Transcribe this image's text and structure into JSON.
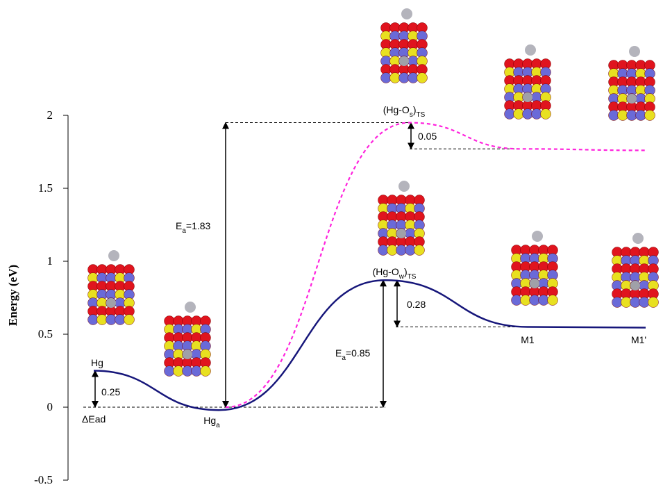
{
  "chart_data": {
    "type": "line",
    "y_label": "Energy (eV)",
    "ylim": [
      -0.5,
      2
    ],
    "yticks": [
      -0.5,
      0,
      0.5,
      1,
      1.5,
      2
    ],
    "categories": [
      {
        "parts": [
          {
            "t": "Hg"
          }
        ]
      },
      {
        "parts": [
          {
            "t": "Hg"
          },
          {
            "t": "a",
            "sub": true
          }
        ]
      },
      {
        "parts": [
          {
            "t": "(Hg-O"
          },
          {
            "t": "w",
            "sub": true
          },
          {
            "t": ")"
          },
          {
            "t": "TS",
            "sub": true
          }
        ]
      },
      {
        "parts": [
          {
            "t": "M1"
          }
        ]
      },
      {
        "parts": [
          {
            "t": "M1'"
          }
        ]
      }
    ],
    "series": [
      {
        "color": "#16167a",
        "dashed": false,
        "values": [
          0.25,
          -0.02,
          0.87,
          0.55,
          0.545
        ]
      },
      {
        "color": "#ff22dd",
        "dashed": true,
        "values": [
          null,
          0,
          1.95,
          1.77,
          1.76
        ]
      }
    ],
    "annotations": [
      {
        "parts": [
          {
            "t": "(Hg-O"
          },
          {
            "t": "s",
            "sub": true
          },
          {
            "t": ")"
          },
          {
            "t": "TS",
            "sub": true
          }
        ]
      },
      {
        "parts": [
          {
            "t": "ΔEad"
          }
        ]
      },
      {
        "parts": [
          {
            "t": "0.25"
          }
        ]
      },
      {
        "parts": [
          {
            "t": "E"
          },
          {
            "t": "a",
            "sub": true
          },
          {
            "t": "=1.83"
          }
        ]
      },
      {
        "parts": [
          {
            "t": "0.05"
          }
        ]
      },
      {
        "parts": [
          {
            "t": "E"
          },
          {
            "t": "a",
            "sub": true
          },
          {
            "t": "=0.85"
          }
        ]
      },
      {
        "parts": [
          {
            "t": "0.28"
          }
        ]
      }
    ]
  }
}
